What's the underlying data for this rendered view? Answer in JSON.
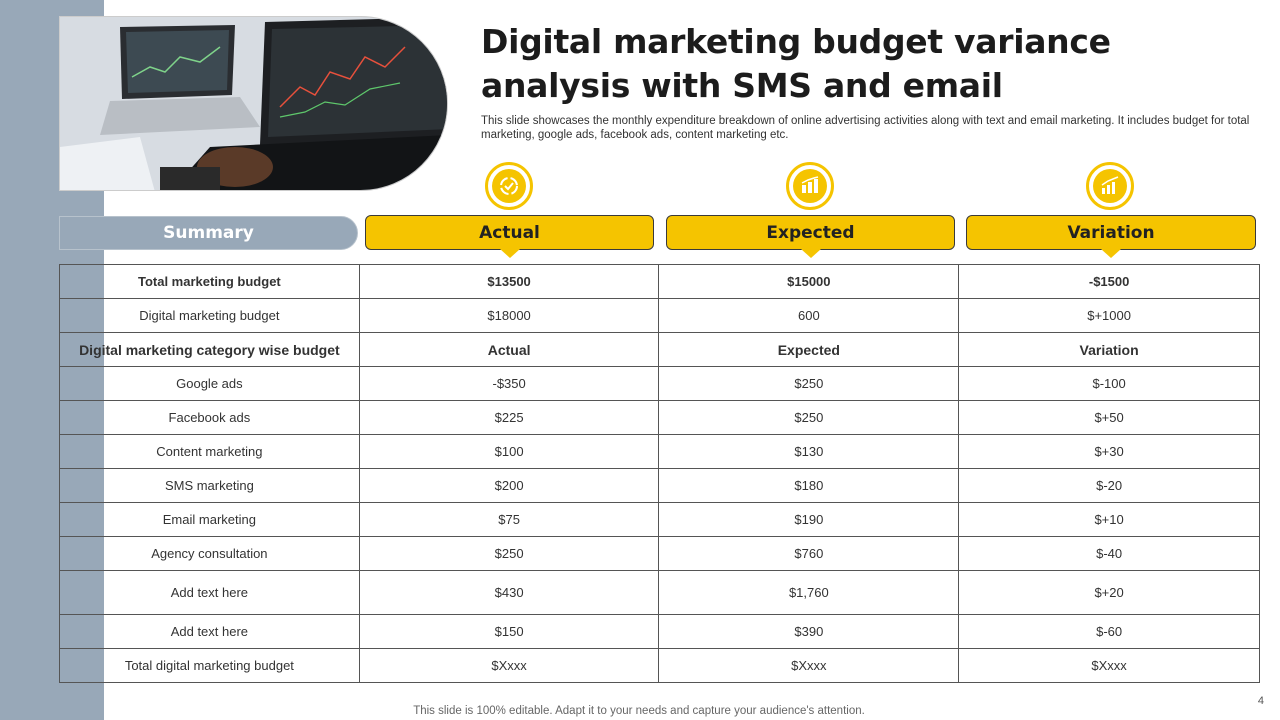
{
  "slide": {
    "title": "Digital marketing budget variance analysis with SMS and email",
    "subtitle": "This slide showcases the monthly expenditure breakdown of online advertising activities along with text and email marketing. It includes budget for total marketing, google ads, facebook ads, content marketing etc.",
    "footer": "This slide is 100% editable. Adapt it to your needs and capture your audience's attention.",
    "page_number": "4"
  },
  "header_labels": {
    "summary": "Summary",
    "actual": "Actual",
    "expected": "Expected",
    "variation": "Variation"
  },
  "icons": {
    "actual": "check-target-icon",
    "expected": "chart-report-icon",
    "variation": "growth-bars-icon"
  },
  "colors": {
    "accent": "#f5c400",
    "strip": "#98a8b8"
  },
  "table": {
    "rows": [
      [
        "Total marketing budget",
        "$13500",
        "$15000",
        "-$1500"
      ],
      [
        "Digital marketing budget",
        "$18000",
        "600",
        "$+1000"
      ],
      [
        "Digital marketing category wise budget",
        "Actual",
        "Expected",
        "Variation"
      ],
      [
        "Google ads",
        "-$350",
        "$250",
        "$-100"
      ],
      [
        "Facebook ads",
        "$225",
        "$250",
        "$+50"
      ],
      [
        "Content marketing",
        "$100",
        "$130",
        "$+30"
      ],
      [
        "SMS marketing",
        "$200",
        "$180",
        "$-20"
      ],
      [
        "Email marketing",
        "$75",
        "$190",
        "$+10"
      ],
      [
        "Agency consultation",
        "$250",
        "$760",
        "$-40"
      ],
      [
        "Add text here",
        "$430",
        "$1,760",
        "$+20"
      ],
      [
        "Add text here",
        "$150",
        "$390",
        "$-60"
      ],
      [
        "Total digital marketing budget",
        "$Xxxx",
        "$Xxxx",
        "$Xxxx"
      ]
    ]
  }
}
